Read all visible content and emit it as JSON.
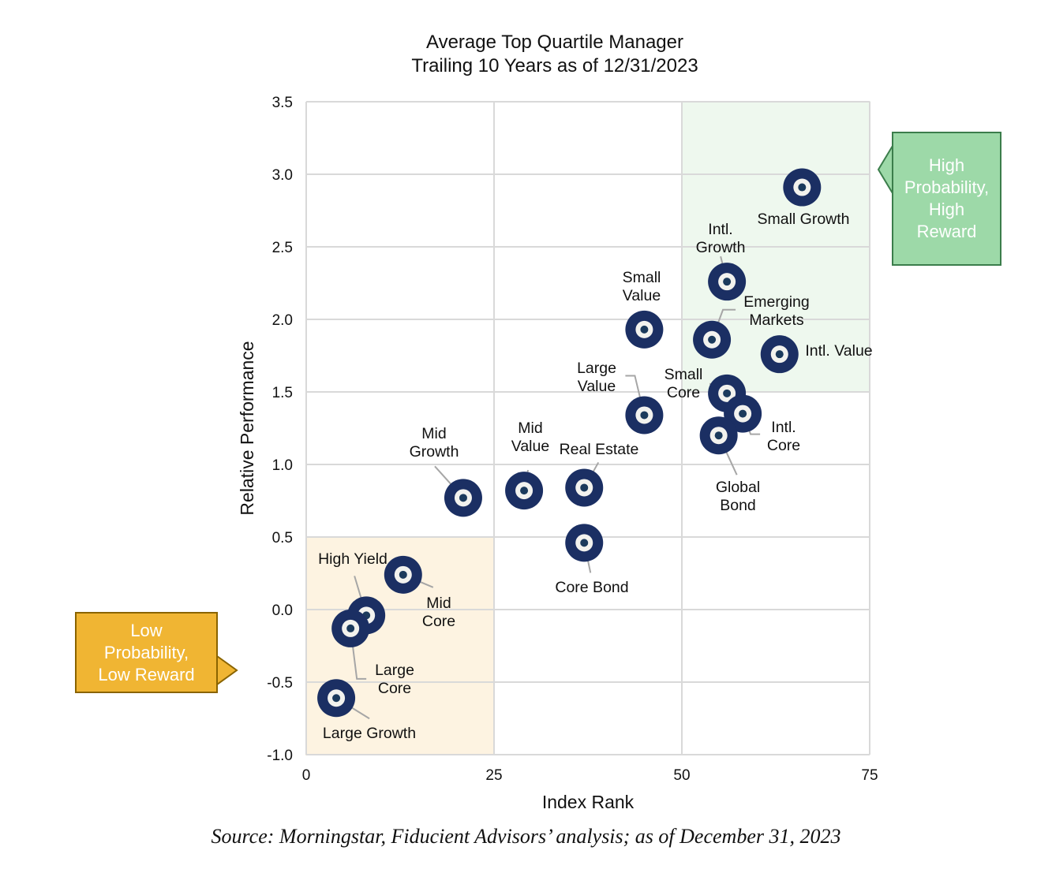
{
  "chart_data": {
    "type": "scatter",
    "title": [
      "Average Top Quartile Manager",
      "Trailing 10 Years as of 12/31/2023"
    ],
    "xlabel": "Index Rank",
    "ylabel": "Relative Performance",
    "xlim": [
      0,
      75
    ],
    "ylim": [
      -1.0,
      3.5
    ],
    "xticks": [
      "0",
      "25",
      "50",
      "75"
    ],
    "yticks": [
      "3.5",
      "3.0",
      "2.5",
      "2.0",
      "1.5",
      "1.0",
      "0.5",
      "0.0",
      "-0.5",
      "-1.0"
    ],
    "grid": true,
    "points": [
      {
        "label": "Small Growth",
        "x": 66.0,
        "y": 2.91
      },
      {
        "label": "Intl. Growth",
        "x": 56.0,
        "y": 2.26
      },
      {
        "label": "Small Value",
        "x": 45.0,
        "y": 1.93
      },
      {
        "label": "Emerging Markets",
        "x": 54.0,
        "y": 1.86
      },
      {
        "label": "Intl. Value",
        "x": 63.0,
        "y": 1.76
      },
      {
        "label": "Small Core",
        "x": 56.0,
        "y": 1.49
      },
      {
        "label": "Intl. Core",
        "x": 58.1,
        "y": 1.35
      },
      {
        "label": "Large Value",
        "x": 45.0,
        "y": 1.34
      },
      {
        "label": "Global Bond",
        "x": 54.9,
        "y": 1.2
      },
      {
        "label": "Mid Growth",
        "x": 20.9,
        "y": 0.77
      },
      {
        "label": "Mid Value",
        "x": 29.0,
        "y": 0.82
      },
      {
        "label": "Real Estate",
        "x": 37.0,
        "y": 0.84
      },
      {
        "label": "Core Bond",
        "x": 37.0,
        "y": 0.46
      },
      {
        "label": "Mid Core",
        "x": 12.9,
        "y": 0.24
      },
      {
        "label": "High Yield",
        "x": 8.0,
        "y": -0.04
      },
      {
        "label": "Large Core",
        "x": 5.9,
        "y": -0.13
      },
      {
        "label": "Large Growth",
        "x": 4.0,
        "y": -0.61
      }
    ],
    "zones": [
      {
        "name": "high",
        "x": [
          50,
          75
        ],
        "y": [
          1.5,
          3.5
        ],
        "color": "#eef8ee"
      },
      {
        "name": "low",
        "x": [
          0,
          25
        ],
        "y": [
          -1.0,
          0.5
        ],
        "color": "#fdf3e1"
      }
    ],
    "marker_color": "#1b2f63"
  },
  "callouts": {
    "high": "High Probability, High Reward",
    "low": "Low Probability, Low Reward",
    "high_color": "#9dd9a8",
    "low_color": "#f0b533"
  },
  "source": "Source: Morningstar, Fiducient Advisors’ analysis; as of December 31, 2023"
}
